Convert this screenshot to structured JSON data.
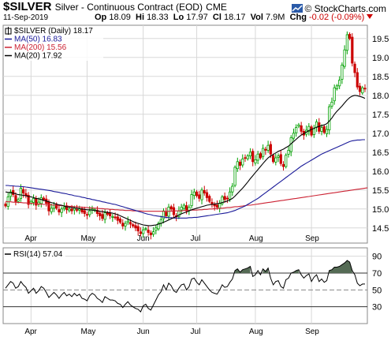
{
  "header": {
    "symbol": "$SILVER",
    "description": "Silver - Continuous Contract (EOD)",
    "exchange": "CME",
    "brand": "© StockCharts.com",
    "date": "11-Sep-2019",
    "open_label": "Op",
    "open_value": "18.09",
    "high_label": "Hi",
    "high_value": "18.33",
    "low_label": "Lo",
    "low_value": "17.97",
    "close_label": "Cl",
    "close_value": "18.17",
    "volume_label": "Vol",
    "volume_value": "7.9M",
    "change_label": "Chg",
    "change_value": "-0.02 (-0.09%)"
  },
  "colors": {
    "up": "#00a000",
    "down": "#cc0000",
    "ma50": "#1a1a99",
    "ma200": "#cc2233",
    "ma20": "#000000",
    "rsi": "#000000",
    "rsi_fill": "#556b55",
    "grid": "#d8d8d8"
  },
  "chart_data": [
    {
      "type": "candlestick",
      "title": "$SILVER (Daily) 18.17",
      "legend": [
        {
          "label": "$SILVER (Daily) 18.17",
          "color": "#000000"
        },
        {
          "label": "MA(50) 16.83",
          "color": "#1a1a99"
        },
        {
          "label": "MA(200) 15.56",
          "color": "#cc2233"
        },
        {
          "label": "MA(20) 17.92",
          "color": "#000000"
        }
      ],
      "legend_placement": "top-left",
      "x_labels": [
        "Apr",
        "May",
        "Jun",
        "Jul",
        "Aug",
        "Sep"
      ],
      "y_ticks": [
        14.5,
        15.0,
        15.5,
        16.0,
        16.5,
        17.0,
        17.5,
        18.0,
        18.5,
        19.0,
        19.5
      ],
      "ylim": [
        14.1,
        19.85
      ],
      "grid": true,
      "closes": [
        15.08,
        15.32,
        15.45,
        15.38,
        15.2,
        15.25,
        15.55,
        15.42,
        15.35,
        15.12,
        15.2,
        15.28,
        15.1,
        15.18,
        15.3,
        15.25,
        15.15,
        14.95,
        15.02,
        15.1,
        15.02,
        14.92,
        15.0,
        15.05,
        14.98,
        15.0,
        14.95,
        15.02,
        14.98,
        15.0,
        14.92,
        14.88,
        14.85,
        14.95,
        15.0,
        14.98,
        14.88,
        14.82,
        14.75,
        14.9,
        14.86,
        14.82,
        14.8,
        14.78,
        14.7,
        14.65,
        14.55,
        14.62,
        14.68,
        14.6,
        14.55,
        14.5,
        14.42,
        14.35,
        14.45,
        14.48,
        14.38,
        14.32,
        14.4,
        14.5,
        14.62,
        14.72,
        14.95,
        14.82,
        15.05,
        15.0,
        14.85,
        14.8,
        14.95,
        15.05,
        15.1,
        14.95,
        15.05,
        15.38,
        15.45,
        15.35,
        15.28,
        15.5,
        15.42,
        15.3,
        15.2,
        15.12,
        15.08,
        15.05,
        15.15,
        15.32,
        15.25,
        15.28,
        15.45,
        15.6,
        16.1,
        16.25,
        16.15,
        16.32,
        16.35,
        16.4,
        16.5,
        16.25,
        16.3,
        16.45,
        16.35,
        16.6,
        16.55,
        16.68,
        16.45,
        16.25,
        16.35,
        16.4,
        16.2,
        16.12,
        16.42,
        16.55,
        16.88,
        17.0,
        17.15,
        17.22,
        17.05,
        16.95,
        17.08,
        17.18,
        16.95,
        17.12,
        17.3,
        17.05,
        17.15,
        17.02,
        17.1,
        17.7,
        17.82,
        18.2,
        18.25,
        18.4,
        18.8,
        19.2,
        19.6,
        19.5,
        18.85,
        18.6,
        18.22,
        18.1,
        18.2,
        18.17
      ],
      "ma20": [
        15.45,
        15.44,
        15.43,
        15.42,
        15.4,
        15.38,
        15.37,
        15.36,
        15.35,
        15.33,
        15.32,
        15.3,
        15.28,
        15.27,
        15.25,
        15.23,
        15.21,
        15.19,
        15.17,
        15.15,
        15.13,
        15.11,
        15.1,
        15.08,
        15.06,
        15.05,
        15.04,
        15.03,
        15.02,
        15.01,
        15.0,
        14.99,
        14.98,
        14.98,
        14.97,
        14.96,
        14.95,
        14.94,
        14.93,
        14.92,
        14.91,
        14.9,
        14.89,
        14.87,
        14.85,
        14.82,
        14.79,
        14.76,
        14.73,
        14.7,
        14.67,
        14.64,
        14.62,
        14.6,
        14.58,
        14.57,
        14.56,
        14.56,
        14.57,
        14.58,
        14.6,
        14.62,
        14.65,
        14.68,
        14.71,
        14.74,
        14.77,
        14.8,
        14.84,
        14.87,
        14.9,
        14.92,
        14.95,
        14.98,
        15.0,
        15.02,
        15.04,
        15.06,
        15.08,
        15.1,
        15.11,
        15.12,
        15.13,
        15.14,
        15.15,
        15.17,
        15.19,
        15.21,
        15.24,
        15.28,
        15.34,
        15.41,
        15.48,
        15.55,
        15.63,
        15.71,
        15.8,
        15.88,
        15.96,
        16.04,
        16.12,
        16.2,
        16.28,
        16.35,
        16.4,
        16.44,
        16.48,
        16.52,
        16.55,
        16.58,
        16.62,
        16.66,
        16.72,
        16.78,
        16.84,
        16.9,
        16.95,
        16.99,
        17.03,
        17.07,
        17.1,
        17.13,
        17.16,
        17.18,
        17.2,
        17.22,
        17.25,
        17.32,
        17.4,
        17.5,
        17.58,
        17.65,
        17.72,
        17.8,
        17.88,
        17.94,
        17.98,
        18.0,
        17.99,
        17.97,
        17.95,
        17.92
      ],
      "ma50": [
        15.62,
        15.62,
        15.61,
        15.61,
        15.6,
        15.6,
        15.59,
        15.59,
        15.58,
        15.57,
        15.56,
        15.55,
        15.54,
        15.53,
        15.52,
        15.51,
        15.5,
        15.49,
        15.48,
        15.46,
        15.45,
        15.44,
        15.42,
        15.41,
        15.4,
        15.38,
        15.37,
        15.35,
        15.34,
        15.33,
        15.31,
        15.3,
        15.28,
        15.27,
        15.25,
        15.24,
        15.22,
        15.21,
        15.19,
        15.18,
        15.16,
        15.15,
        15.13,
        15.12,
        15.1,
        15.08,
        15.06,
        15.04,
        15.02,
        15.0,
        14.98,
        14.96,
        14.94,
        14.92,
        14.9,
        14.88,
        14.86,
        14.85,
        14.83,
        14.82,
        14.81,
        14.8,
        14.79,
        14.78,
        14.77,
        14.77,
        14.76,
        14.76,
        14.76,
        14.76,
        14.76,
        14.76,
        14.77,
        14.77,
        14.78,
        14.78,
        14.79,
        14.8,
        14.81,
        14.82,
        14.83,
        14.84,
        14.85,
        14.86,
        14.87,
        14.88,
        14.89,
        14.9,
        14.92,
        14.94,
        14.96,
        14.99,
        15.02,
        15.05,
        15.08,
        15.12,
        15.16,
        15.2,
        15.24,
        15.28,
        15.33,
        15.38,
        15.43,
        15.48,
        15.53,
        15.58,
        15.63,
        15.68,
        15.73,
        15.78,
        15.83,
        15.88,
        15.93,
        15.98,
        16.03,
        16.08,
        16.13,
        16.17,
        16.21,
        16.25,
        16.29,
        16.33,
        16.37,
        16.41,
        16.45,
        16.48,
        16.51,
        16.54,
        16.57,
        16.6,
        16.63,
        16.66,
        16.69,
        16.72,
        16.75,
        16.78,
        16.8,
        16.81,
        16.82,
        16.82,
        16.83,
        16.83
      ],
      "ma200": [
        15.2,
        15.19,
        15.19,
        15.18,
        15.18,
        15.17,
        15.17,
        15.16,
        15.16,
        15.15,
        15.15,
        15.14,
        15.14,
        15.13,
        15.13,
        15.12,
        15.12,
        15.11,
        15.11,
        15.1,
        15.1,
        15.09,
        15.09,
        15.08,
        15.08,
        15.07,
        15.07,
        15.06,
        15.06,
        15.05,
        15.05,
        15.04,
        15.04,
        15.03,
        15.03,
        15.02,
        15.02,
        15.01,
        15.01,
        15.0,
        15.0,
        14.99,
        14.99,
        14.98,
        14.98,
        14.97,
        14.97,
        14.96,
        14.96,
        14.96,
        14.95,
        14.95,
        14.95,
        14.95,
        14.94,
        14.94,
        14.94,
        14.94,
        14.94,
        14.94,
        14.94,
        14.94,
        14.94,
        14.94,
        14.94,
        14.94,
        14.95,
        14.95,
        14.95,
        14.95,
        14.96,
        14.96,
        14.96,
        14.97,
        14.97,
        14.97,
        14.98,
        14.98,
        14.99,
        14.99,
        15.0,
        15.0,
        15.01,
        15.01,
        15.02,
        15.02,
        15.03,
        15.04,
        15.04,
        15.05,
        15.06,
        15.06,
        15.07,
        15.08,
        15.09,
        15.1,
        15.1,
        15.11,
        15.12,
        15.13,
        15.14,
        15.15,
        15.16,
        15.17,
        15.18,
        15.19,
        15.2,
        15.21,
        15.22,
        15.23,
        15.24,
        15.25,
        15.26,
        15.27,
        15.28,
        15.29,
        15.3,
        15.31,
        15.32,
        15.33,
        15.34,
        15.35,
        15.36,
        15.37,
        15.38,
        15.39,
        15.4,
        15.41,
        15.42,
        15.43,
        15.44,
        15.45,
        15.46,
        15.47,
        15.48,
        15.49,
        15.5,
        15.51,
        15.52,
        15.53,
        15.54,
        15.55,
        15.56
      ]
    },
    {
      "type": "line",
      "title": "RSI(14) 57.04",
      "legend": [
        {
          "label": "RSI(14) 57.04",
          "color": "#000000"
        }
      ],
      "legend_placement": "top-left",
      "x_labels": [
        "Apr",
        "May",
        "Jun",
        "Jul",
        "Aug",
        "Sep"
      ],
      "y_ticks": [
        30,
        50,
        70,
        90
      ],
      "ylim": [
        10,
        100
      ],
      "grid": true,
      "values": [
        52,
        56,
        60,
        58,
        52,
        54,
        60,
        56,
        53,
        46,
        49,
        52,
        46,
        49,
        54,
        52,
        47,
        41,
        44,
        47,
        44,
        40,
        44,
        47,
        43,
        45,
        42,
        46,
        43,
        45,
        40,
        39,
        37,
        43,
        46,
        44,
        40,
        38,
        35,
        42,
        40,
        38,
        38,
        37,
        34,
        33,
        29,
        33,
        36,
        32,
        30,
        28,
        27,
        24,
        31,
        33,
        28,
        26,
        32,
        38,
        44,
        48,
        56,
        50,
        58,
        55,
        49,
        47,
        52,
        56,
        57,
        50,
        54,
        63,
        64,
        59,
        56,
        62,
        58,
        54,
        50,
        47,
        46,
        45,
        50,
        56,
        53,
        54,
        59,
        63,
        73,
        75,
        71,
        74,
        75,
        76,
        78,
        66,
        68,
        73,
        68,
        75,
        72,
        76,
        64,
        56,
        60,
        61,
        54,
        52,
        62,
        64,
        70,
        71,
        73,
        74,
        68,
        64,
        67,
        69,
        60,
        65,
        68,
        60,
        63,
        59,
        61,
        73,
        74,
        77,
        77,
        78,
        80,
        82,
        85,
        83,
        73,
        68,
        58,
        55,
        57,
        57
      ]
    }
  ]
}
